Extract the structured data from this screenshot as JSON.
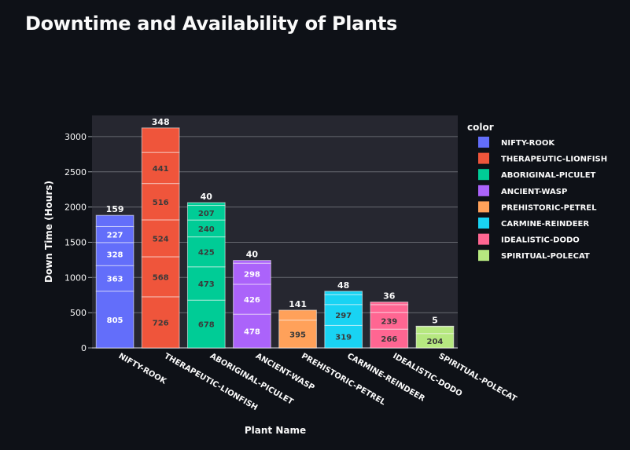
{
  "page": {
    "title": "Downtime and Availability of Plants"
  },
  "chart_data": {
    "type": "bar",
    "stacked": true,
    "title": "Downtime and Availability of Plants",
    "xlabel": "Plant Name",
    "ylabel": "Down Time (Hours)",
    "ylim": [
      0,
      3300
    ],
    "yticks": [
      0,
      500,
      1000,
      1500,
      2000,
      2500,
      3000
    ],
    "grid": true,
    "legend_title": "color",
    "legend_position": "right",
    "categories": [
      "NIFTY-ROOK",
      "THERAPEUTIC-LIONFISH",
      "ABORIGINAL-PICULET",
      "ANCIENT-WASP",
      "PREHISTORIC-PETREL",
      "CARMINE-REINDEER",
      "IDEALISTIC-DODO",
      "SPIRITUAL-POLECAT"
    ],
    "series": [
      {
        "name": "NIFTY-ROOK",
        "color": "#636efa",
        "segments": [
          805,
          363,
          328,
          227,
          159
        ],
        "labels": [
          "805",
          "363",
          "328",
          "227",
          "159"
        ]
      },
      {
        "name": "THERAPEUTIC-LIONFISH",
        "color": "#ef553b",
        "segments": [
          726,
          568,
          524,
          516,
          441,
          348
        ],
        "labels": [
          "726",
          "568",
          "524",
          "516",
          "441",
          "348"
        ]
      },
      {
        "name": "ABORIGINAL-PICULET",
        "color": "#00cc96",
        "segments": [
          678,
          473,
          425,
          240,
          207,
          40
        ],
        "labels": [
          "678",
          "473",
          "425",
          "240",
          "207",
          "40"
        ]
      },
      {
        "name": "ANCIENT-WASP",
        "color": "#ab63fa",
        "segments": [
          478,
          426,
          298,
          40
        ],
        "labels": [
          "478",
          "426",
          "298",
          "40"
        ]
      },
      {
        "name": "PREHISTORIC-PETREL",
        "color": "#ffa15a",
        "segments": [
          395,
          141
        ],
        "labels": [
          "395",
          "141"
        ]
      },
      {
        "name": "CARMINE-REINDEER",
        "color": "#19d3f3",
        "segments": [
          319,
          297,
          140,
          48
        ],
        "labels": [
          "319",
          "297",
          "",
          "48"
        ]
      },
      {
        "name": "IDEALISTIC-DODO",
        "color": "#ff6692",
        "segments": [
          266,
          239,
          110,
          36
        ],
        "labels": [
          "266",
          "239",
          "",
          "36"
        ]
      },
      {
        "name": "SPIRITUAL-POLECAT",
        "color": "#b6e880",
        "segments": [
          204,
          100,
          5
        ],
        "labels": [
          "204",
          "",
          "5"
        ]
      }
    ]
  }
}
